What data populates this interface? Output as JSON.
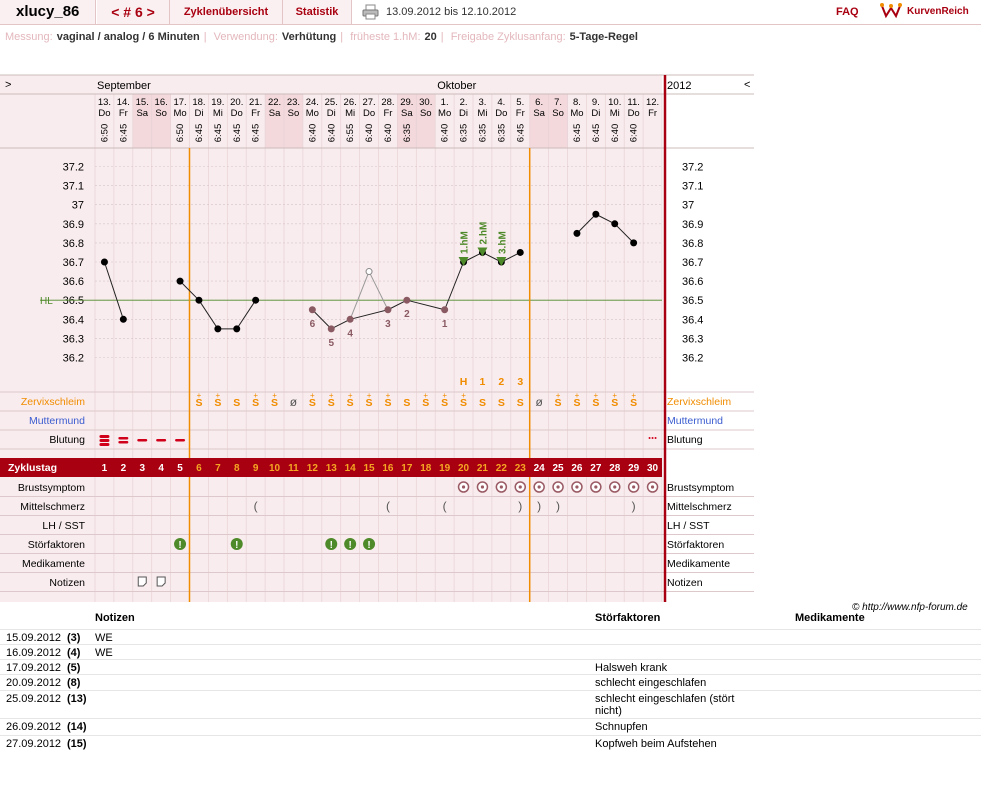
{
  "header": {
    "user": "xlucy_86",
    "cycle": "< # 6 >",
    "tab_overview": "Zyklenübersicht",
    "tab_stats": "Statistik",
    "date_range": "13.09.2012 bis 12.10.2012",
    "faq": "FAQ",
    "brand": "KurvenReich"
  },
  "info": {
    "l1": "Messung:",
    "v1": "vaginal / analog / 6 Minuten",
    "l2": "Verwendung:",
    "v2": "Verhütung",
    "l3": "früheste 1.hM:",
    "v3": "20",
    "l4": "Freigabe Zyklusanfang:",
    "v4": "5-Tage-Regel"
  },
  "copyright": "© http://www.nfp-forum.de",
  "chart_data": {
    "type": "line",
    "months": [
      {
        "label": "September",
        "col": 0
      },
      {
        "label": "Oktober",
        "col": 18
      }
    ],
    "year": "2012",
    "nav_left": ">",
    "nav_right": "<",
    "days": [
      {
        "d": "13.",
        "w": "Do",
        "t": "6:50",
        "we": false
      },
      {
        "d": "14.",
        "w": "Fr",
        "t": "6:45",
        "we": false
      },
      {
        "d": "15.",
        "w": "Sa",
        "t": "",
        "we": true
      },
      {
        "d": "16.",
        "w": "So",
        "t": "",
        "we": true
      },
      {
        "d": "17.",
        "w": "Mo",
        "t": "6:50",
        "we": false
      },
      {
        "d": "18.",
        "w": "Di",
        "t": "6:45",
        "we": false
      },
      {
        "d": "19.",
        "w": "Mi",
        "t": "6:45",
        "we": false
      },
      {
        "d": "20.",
        "w": "Do",
        "t": "6:45",
        "we": false
      },
      {
        "d": "21.",
        "w": "Fr",
        "t": "6:45",
        "we": false
      },
      {
        "d": "22.",
        "w": "Sa",
        "t": "",
        "we": true
      },
      {
        "d": "23.",
        "w": "So",
        "t": "",
        "we": true
      },
      {
        "d": "24.",
        "w": "Mo",
        "t": "6:40",
        "we": false
      },
      {
        "d": "25.",
        "w": "Di",
        "t": "6:40",
        "we": false
      },
      {
        "d": "26.",
        "w": "Mi",
        "t": "6:55",
        "we": false
      },
      {
        "d": "27.",
        "w": "Do",
        "t": "6:40",
        "we": false
      },
      {
        "d": "28.",
        "w": "Fr",
        "t": "6:40",
        "we": false
      },
      {
        "d": "29.",
        "w": "Sa",
        "t": "6:35",
        "we": true
      },
      {
        "d": "30.",
        "w": "So",
        "t": "",
        "we": true
      },
      {
        "d": "1.",
        "w": "Mo",
        "t": "6:40",
        "we": false
      },
      {
        "d": "2.",
        "w": "Di",
        "t": "6:35",
        "we": false
      },
      {
        "d": "3.",
        "w": "Mi",
        "t": "6:35",
        "we": false
      },
      {
        "d": "4.",
        "w": "Do",
        "t": "6:35",
        "we": false
      },
      {
        "d": "5.",
        "w": "Fr",
        "t": "6:45",
        "we": false
      },
      {
        "d": "6.",
        "w": "Sa",
        "t": "",
        "we": true
      },
      {
        "d": "7.",
        "w": "So",
        "t": "",
        "we": true
      },
      {
        "d": "8.",
        "w": "Mo",
        "t": "6:45",
        "we": false
      },
      {
        "d": "9.",
        "w": "Di",
        "t": "6:45",
        "we": false
      },
      {
        "d": "10.",
        "w": "Mi",
        "t": "6:40",
        "we": false
      },
      {
        "d": "11.",
        "w": "Do",
        "t": "6:40",
        "we": false
      },
      {
        "d": "12.",
        "w": "Fr",
        "t": "",
        "we": false
      }
    ],
    "ylim": [
      36.1,
      37.3
    ],
    "yticks": [
      37.2,
      37.1,
      37.0,
      36.9,
      36.8,
      36.7,
      36.6,
      36.5,
      36.4,
      36.3,
      36.2
    ],
    "ytick_labels": [
      "37.2",
      "37.1",
      "37",
      "36.9",
      "36.8",
      "36.7",
      "36.6",
      "36.5",
      "36.4",
      "36.3",
      "36.2"
    ],
    "hl": 36.5,
    "hl_label": "HL",
    "temps": [
      36.7,
      36.4,
      null,
      null,
      36.6,
      36.5,
      36.35,
      36.35,
      36.5,
      null,
      null,
      36.45,
      36.35,
      36.4,
      36.65,
      36.45,
      36.5,
      null,
      36.45,
      36.7,
      36.75,
      36.7,
      36.75,
      null,
      null,
      36.85,
      36.95,
      36.9,
      36.8,
      null
    ],
    "excluded": [
      14
    ],
    "low_numbers": [
      {
        "col": 11,
        "n": "6"
      },
      {
        "col": 12,
        "n": "5"
      },
      {
        "col": 13,
        "n": "4"
      },
      {
        "col": 15,
        "n": "3"
      },
      {
        "col": 16,
        "n": "2"
      },
      {
        "col": 18,
        "n": "1"
      }
    ],
    "high_markers": [
      {
        "col": 19,
        "label": "1.hM"
      },
      {
        "col": 20,
        "label": "2.hM"
      },
      {
        "col": 21,
        "label": "3.hM"
      }
    ],
    "high_counts": [
      {
        "col": 19,
        "t": "H"
      },
      {
        "col": 20,
        "t": "1"
      },
      {
        "col": 21,
        "t": "2"
      },
      {
        "col": 22,
        "t": "3"
      }
    ],
    "orange_lines": [
      5,
      23
    ],
    "red_line": 30,
    "rows": {
      "zervix": "Zervixschleim",
      "muttermund": "Muttermund",
      "blutung": "Blutung",
      "zyklustag": "Zyklustag",
      "brust": "Brustsymptom",
      "mittel": "Mittelschmerz",
      "lh": "LH / SST",
      "stoer": "Störfaktoren",
      "medi": "Medikamente",
      "notiz": "Notizen"
    },
    "zervix_values": [
      "",
      "",
      "",
      "",
      "",
      "S+",
      "S+",
      "S",
      "S+",
      "S+",
      "ø",
      "S+",
      "S+",
      "S+",
      "S+",
      "S+",
      "S",
      "S+",
      "S+",
      "S+",
      "S",
      "S",
      "S",
      "ø",
      "S+",
      "S+",
      "S+",
      "S+",
      "S+",
      ""
    ],
    "blutung_values": [
      "heavy",
      "medium",
      "light",
      "light",
      "light",
      "",
      "",
      "",
      "",
      "",
      "",
      "",
      "",
      "",
      "",
      "",
      "",
      "",
      "",
      "",
      "",
      "",
      "",
      "",
      "",
      "",
      "",
      "",
      "",
      "spot"
    ],
    "brust_cols": [
      19,
      20,
      21,
      22,
      23,
      24,
      25,
      26,
      27,
      28,
      29
    ],
    "mittel_values": {
      "8": "(",
      "15": "(",
      "18": "(",
      "22": ")",
      "23": ")",
      "24": ")",
      "28": ")"
    },
    "stoer_cols": [
      4,
      7,
      12,
      13,
      14
    ],
    "notiz_cols": [
      2,
      3
    ]
  },
  "notes_table": {
    "headers": {
      "notes": "Notizen",
      "stoer": "Störfaktoren",
      "medi": "Medikamente"
    },
    "rows": [
      {
        "date": "15.09.2012",
        "day": "(3)",
        "note": "WE",
        "stoer": ""
      },
      {
        "date": "16.09.2012",
        "day": "(4)",
        "note": "WE",
        "stoer": ""
      },
      {
        "date": "17.09.2012",
        "day": "(5)",
        "note": "",
        "stoer": "Halsweh krank"
      },
      {
        "date": "20.09.2012",
        "day": "(8)",
        "note": "",
        "stoer": "schlecht eingeschlafen"
      },
      {
        "date": "25.09.2012",
        "day": "(13)",
        "note": "",
        "stoer": "schlecht eingeschlafen (stört nicht)"
      },
      {
        "date": "26.09.2012",
        "day": "(14)",
        "note": "",
        "stoer": "Schnupfen"
      },
      {
        "date": "27.09.2012",
        "day": "(15)",
        "note": "",
        "stoer": "Kopfweh beim Aufstehen"
      }
    ]
  },
  "colors": {
    "brand": "#a80010",
    "orange": "#f08c00",
    "green": "#4e8a2a",
    "pink": "#f9ecee",
    "weekend": "#f3d9dc",
    "lowpoint": "#8a5a62"
  }
}
